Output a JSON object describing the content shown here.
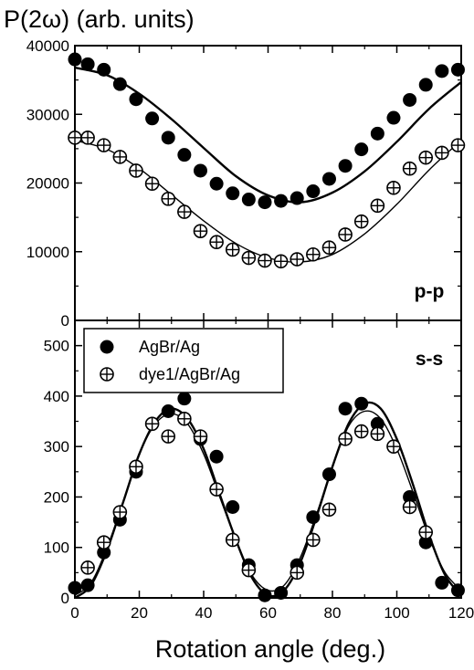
{
  "chart_data": [
    {
      "type": "scatter",
      "panel": "p-p",
      "ylabel": "P(2ω) (arb. units)",
      "xlim": [
        0,
        120
      ],
      "ylim": [
        0,
        40000
      ],
      "xticks": [
        0,
        20,
        40,
        60,
        80,
        100,
        120
      ],
      "yticks": [
        0,
        10000,
        20000,
        30000,
        40000
      ],
      "panel_label": "p-p",
      "series": [
        {
          "name": "AgBr/Ag",
          "marker": "filled-circle",
          "x": [
            0,
            4,
            9,
            14,
            19,
            24,
            29,
            34,
            39,
            44,
            49,
            54,
            59,
            64,
            69,
            74,
            79,
            84,
            89,
            94,
            99,
            104,
            109,
            114,
            119
          ],
          "y": [
            38000,
            37300,
            36500,
            34400,
            32200,
            29400,
            26600,
            24100,
            21800,
            19900,
            18500,
            17600,
            17200,
            17400,
            17800,
            18800,
            20600,
            22500,
            24900,
            27200,
            29500,
            32100,
            34300,
            36300,
            36500
          ]
        },
        {
          "name": "dye1/AgBr/Ag",
          "marker": "crossed-circle",
          "x": [
            0,
            4,
            9,
            14,
            19,
            24,
            29,
            34,
            39,
            44,
            49,
            54,
            59,
            64,
            69,
            74,
            79,
            84,
            89,
            94,
            99,
            104,
            109,
            114,
            119
          ],
          "y": [
            26600,
            26600,
            25500,
            23800,
            21800,
            19900,
            17700,
            15800,
            13000,
            11400,
            10300,
            9100,
            8700,
            8600,
            8900,
            9600,
            10600,
            12500,
            14400,
            16700,
            19300,
            22100,
            23700,
            24400,
            25500
          ]
        }
      ],
      "fits": [
        {
          "series": "AgBr/Ag",
          "x": [
            0,
            10,
            20,
            30,
            40,
            50,
            60,
            70,
            80,
            90,
            100,
            110,
            120
          ],
          "y": [
            36800,
            35700,
            33000,
            29300,
            25100,
            21000,
            18200,
            17200,
            18600,
            21700,
            26000,
            30800,
            34700
          ]
        },
        {
          "series": "dye1/AgBr/Ag",
          "x": [
            0,
            10,
            20,
            30,
            40,
            50,
            60,
            70,
            80,
            90,
            100,
            110,
            120
          ],
          "y": [
            26200,
            24900,
            22100,
            18300,
            14500,
            11200,
            9100,
            8500,
            9600,
            12600,
            16900,
            21900,
            26200
          ]
        }
      ]
    },
    {
      "type": "scatter",
      "panel": "s-s",
      "xlabel": "Rotation angle (deg.)",
      "xlim": [
        0,
        120
      ],
      "ylim": [
        0,
        550
      ],
      "xticks": [
        0,
        20,
        40,
        60,
        80,
        100,
        120
      ],
      "yticks": [
        0,
        100,
        200,
        300,
        400,
        500
      ],
      "panel_label": "s-s",
      "legend": {
        "placement": "top-left",
        "entries": [
          "AgBr/Ag",
          "dye1/AgBr/Ag"
        ]
      },
      "series": [
        {
          "name": "AgBr/Ag",
          "marker": "filled-circle",
          "x": [
            0,
            4,
            9,
            14,
            19,
            24,
            29,
            34,
            39,
            44,
            49,
            54,
            59,
            64,
            69,
            74,
            79,
            84,
            89,
            94,
            99,
            104,
            109,
            114,
            119
          ],
          "y": [
            20,
            25,
            90,
            155,
            250,
            345,
            370,
            395,
            315,
            280,
            180,
            65,
            5,
            10,
            65,
            160,
            245,
            375,
            385,
            345,
            300,
            200,
            110,
            30,
            15
          ]
        },
        {
          "name": "dye1/AgBr/Ag",
          "marker": "crossed-circle",
          "x": [
            4,
            9,
            14,
            19,
            24,
            29,
            34,
            39,
            44,
            49,
            54,
            69,
            74,
            79,
            84,
            89,
            94,
            99,
            104,
            109
          ],
          "y": [
            60,
            110,
            170,
            260,
            345,
            320,
            355,
            320,
            215,
            115,
            55,
            50,
            115,
            175,
            315,
            330,
            325,
            300,
            180,
            130
          ]
        }
      ],
      "fits": [
        {
          "series": "AgBr/Ag",
          "x": [
            0,
            5,
            10,
            15,
            20,
            25,
            30,
            35,
            40,
            45,
            50,
            55,
            60,
            65,
            70,
            75,
            80,
            85,
            90,
            95,
            100,
            105,
            110,
            115,
            120
          ],
          "y": [
            0,
            25,
            95,
            190,
            285,
            350,
            375,
            355,
            295,
            205,
            115,
            40,
            5,
            15,
            70,
            160,
            260,
            345,
            385,
            375,
            315,
            225,
            125,
            45,
            5
          ]
        },
        {
          "series": "dye1/AgBr/Ag",
          "x": [
            0,
            5,
            10,
            15,
            20,
            25,
            30,
            35,
            40,
            45,
            50,
            55,
            60,
            65,
            70,
            75,
            80,
            85,
            90,
            95,
            100,
            105,
            110,
            115,
            120
          ],
          "y": [
            5,
            30,
            100,
            190,
            285,
            345,
            365,
            345,
            285,
            200,
            115,
            45,
            15,
            25,
            80,
            165,
            260,
            340,
            370,
            355,
            295,
            210,
            120,
            50,
            15
          ]
        }
      ]
    }
  ]
}
